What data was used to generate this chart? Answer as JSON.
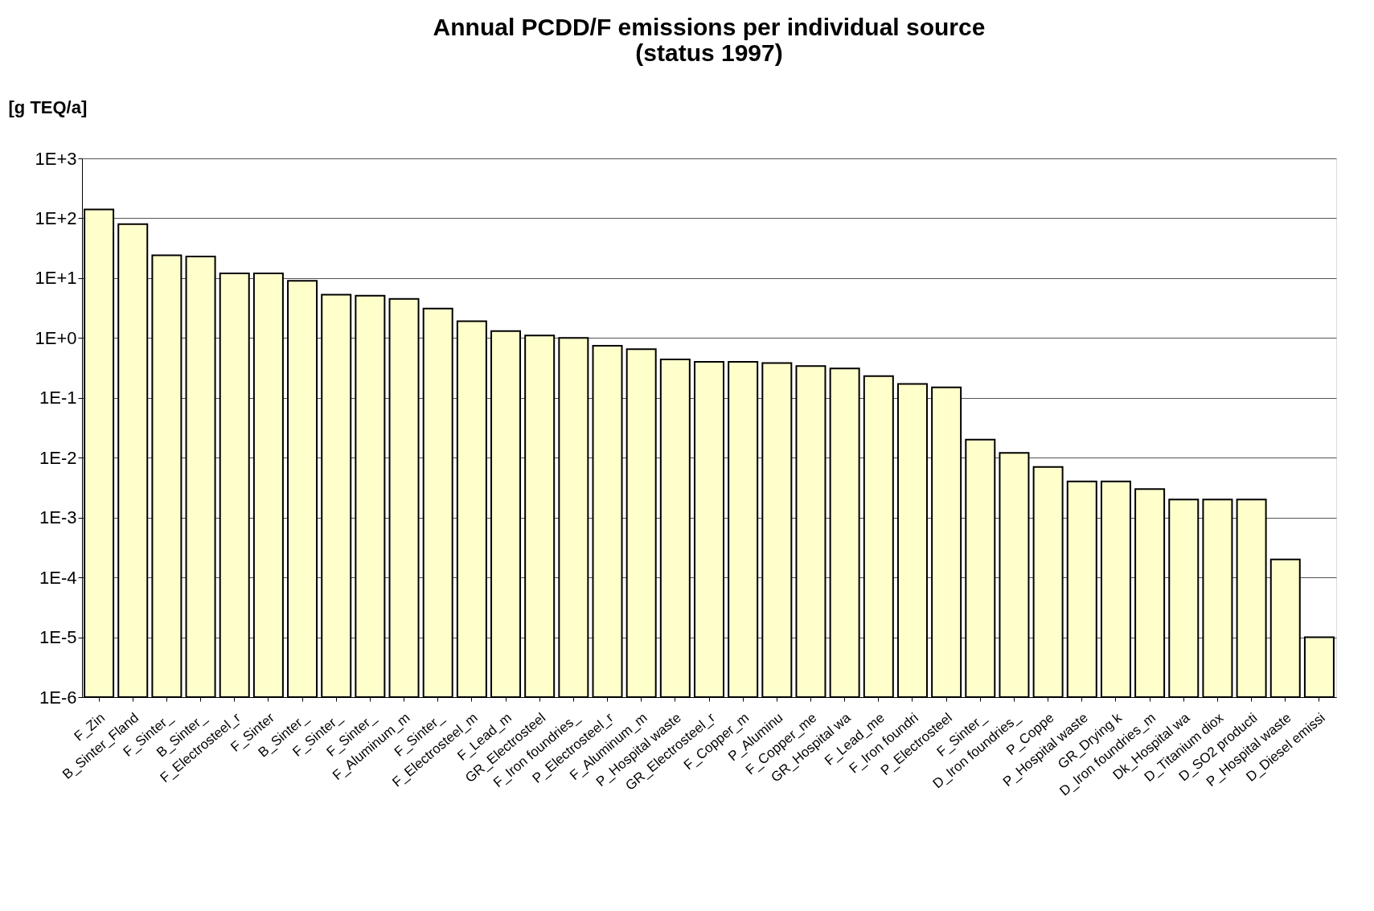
{
  "chart_data": {
    "type": "bar",
    "title": "Annual PCDD/F emissions per individual source\n(status 1997)",
    "ylabel": "[g TEQ/a]",
    "categories": [
      "F_Zin",
      "B_Sinter_Fland",
      "F_Sinter_",
      "B_Sinter_",
      "F_Electrosteel_r",
      "F_Sinter",
      "B_Sinter_",
      "F_Sinter_",
      "F_Sinter_",
      "F_Aluminum_m",
      "F_Sinter_",
      "F_Electrosteel_m",
      "F_Lead_m",
      "GR_Electrosteel",
      "F_Iron foundries_",
      "P_Electrosteel_r",
      "F_Aluminum_m",
      "P_Hospital waste",
      "GR_Electrosteel_r",
      "F_Copper_m",
      "P_Aluminu",
      "F_Copper_me",
      "GR_Hospital wa",
      "F_Lead_me",
      "F_Iron foundri",
      "P_Electrosteel",
      "F_Sinter_",
      "D_Iron foundries_",
      "P_Coppe",
      "P_Hospital waste",
      "GR_Drying k",
      "D_Iron foundries_m",
      "Dk_Hospital wa",
      "D_Titanium diox",
      "D_SO2 producti",
      "P_Hospital waste",
      "D_Diesel emissi"
    ],
    "values": [
      140,
      80,
      24,
      23,
      12,
      12,
      9,
      5.3,
      5.1,
      4.5,
      3.1,
      1.9,
      1.3,
      1.1,
      1.0,
      0.74,
      0.65,
      0.44,
      0.4,
      0.4,
      0.38,
      0.34,
      0.31,
      0.23,
      0.17,
      0.15,
      0.02,
      0.012,
      0.007,
      0.004,
      0.004,
      0.003,
      0.002,
      0.002,
      0.002,
      0.0002,
      1e-05
    ],
    "color": "#ffffcc",
    "log": true,
    "ylim": [
      1e-06,
      1000
    ],
    "yticks": [
      {
        "value": 1e-06,
        "label": "1E-6"
      },
      {
        "value": 1e-05,
        "label": "1E-5"
      },
      {
        "value": 0.0001,
        "label": "1E-4"
      },
      {
        "value": 0.001,
        "label": "1E-3"
      },
      {
        "value": 0.01,
        "label": "1E-2"
      },
      {
        "value": 0.1,
        "label": "1E-1"
      },
      {
        "value": 1,
        "label": "1E+0"
      },
      {
        "value": 10,
        "label": "1E+1"
      },
      {
        "value": 100,
        "label": "1E+2"
      },
      {
        "value": 1000,
        "label": "1E+3"
      }
    ],
    "grid": "y"
  }
}
